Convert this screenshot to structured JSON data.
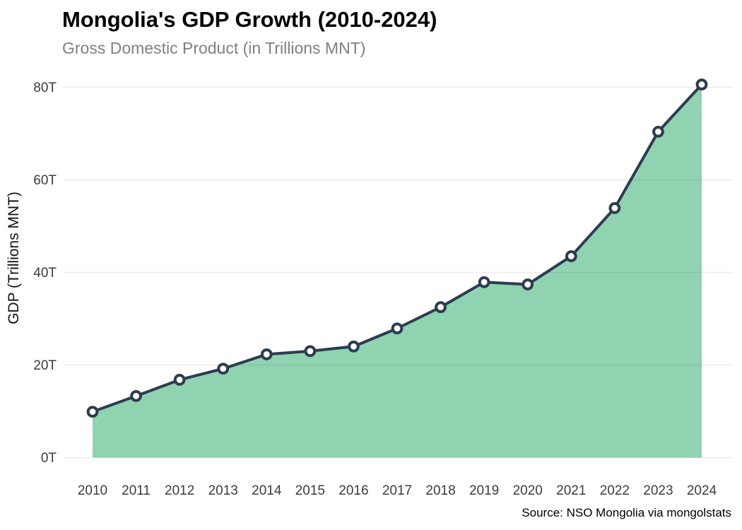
{
  "chart_data": {
    "type": "area",
    "title": "Mongolia's GDP Growth (2010-2024)",
    "subtitle": "Gross Domestic Product (in Trillions MNT)",
    "xlabel": "",
    "ylabel": "GDP (Trillions MNT)",
    "categories": [
      "2010",
      "2011",
      "2012",
      "2013",
      "2014",
      "2015",
      "2016",
      "2017",
      "2018",
      "2019",
      "2020",
      "2021",
      "2022",
      "2023",
      "2024"
    ],
    "series": [
      {
        "name": "GDP (Trillions MNT)",
        "values": [
          9.9,
          13.3,
          16.8,
          19.2,
          22.3,
          23.0,
          24.0,
          27.9,
          32.5,
          37.9,
          37.4,
          43.5,
          53.9,
          70.4,
          80.6
        ]
      }
    ],
    "ylim": [
      0,
      82
    ],
    "yticks": [
      0,
      20,
      40,
      60,
      80
    ],
    "ytick_labels": [
      "0T",
      "20T",
      "40T",
      "60T",
      "80T"
    ],
    "grid": true,
    "legend_position": "none",
    "source": "Source: NSO Mongolia via mongolstats",
    "colors": {
      "line": "#2d3c50",
      "marker_fill": "#ffffff",
      "marker_stroke": "#2d3c50",
      "area": "#90d3b1",
      "gridline": "#ebebeb",
      "title": "#000000",
      "subtitle": "#808080",
      "axis_text": "#3c3c3c",
      "background": "#ffffff"
    }
  }
}
